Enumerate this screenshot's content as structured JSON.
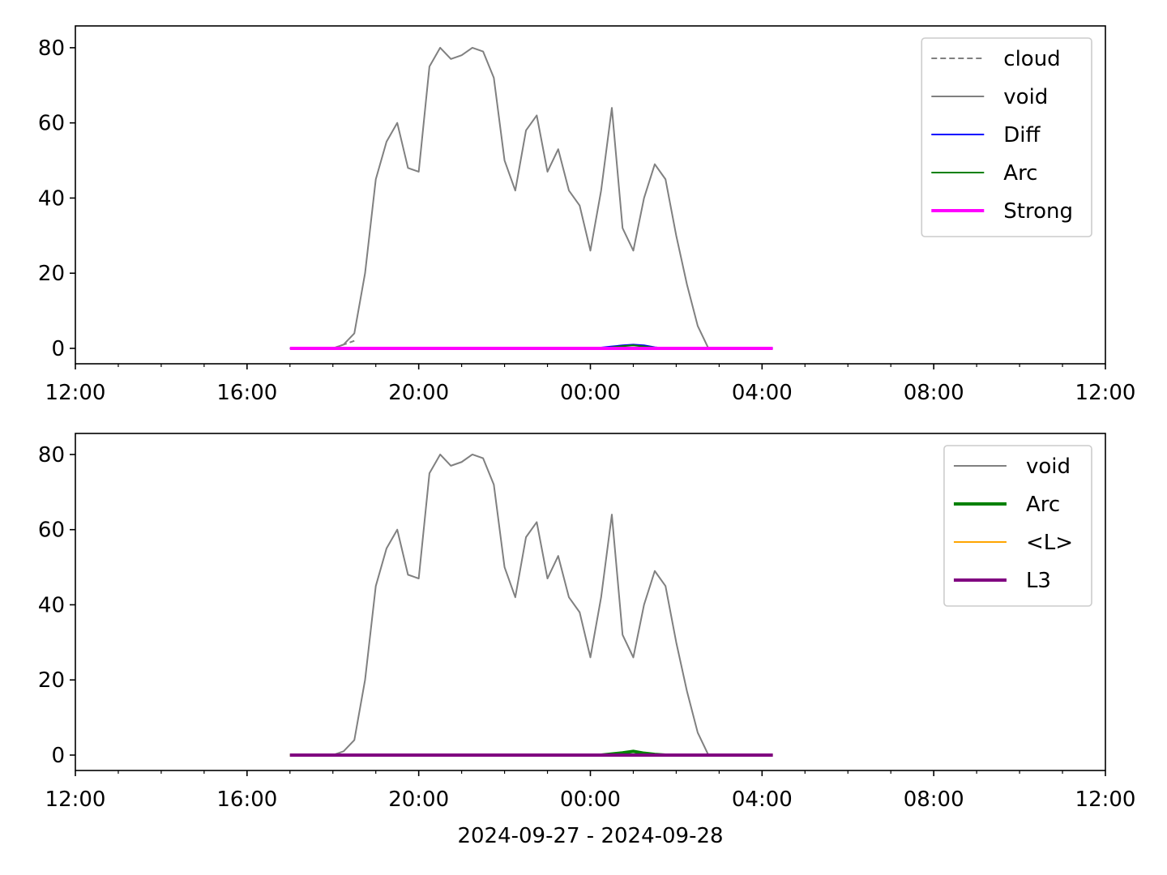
{
  "chart_data": [
    {
      "type": "line",
      "xlim": [
        "2024-09-27T12:00",
        "2024-09-28T12:00"
      ],
      "xticks": [
        {
          "value": "2024-09-27T12:00",
          "label": "12:00"
        },
        {
          "value": "2024-09-27T16:00",
          "label": "16:00"
        },
        {
          "value": "2024-09-27T20:00",
          "label": "20:00"
        },
        {
          "value": "2024-09-28T00:00",
          "label": "00:00"
        },
        {
          "value": "2024-09-28T04:00",
          "label": "04:00"
        },
        {
          "value": "2024-09-28T08:00",
          "label": "08:00"
        },
        {
          "value": "2024-09-28T12:00",
          "label": "12:00"
        }
      ],
      "xminorticks": [
        "2024-09-27T13:00",
        "2024-09-27T14:00",
        "2024-09-27T15:00",
        "2024-09-27T17:00",
        "2024-09-27T18:00",
        "2024-09-27T19:00",
        "2024-09-27T21:00",
        "2024-09-27T22:00",
        "2024-09-27T23:00",
        "2024-09-28T01:00",
        "2024-09-28T02:00",
        "2024-09-28T03:00",
        "2024-09-28T05:00",
        "2024-09-28T06:00",
        "2024-09-28T07:00",
        "2024-09-28T09:00",
        "2024-09-28T10:00",
        "2024-09-28T11:00"
      ],
      "ylim": [
        -4.1,
        85.8
      ],
      "yticks": [
        0,
        20,
        40,
        60,
        80
      ],
      "legend": "upper right",
      "x": [
        "2024-09-27T17:00",
        "2024-09-27T17:15",
        "2024-09-27T17:30",
        "2024-09-27T17:45",
        "2024-09-27T18:00",
        "2024-09-27T18:15",
        "2024-09-27T18:30",
        "2024-09-27T18:45",
        "2024-09-27T19:00",
        "2024-09-27T19:15",
        "2024-09-27T19:30",
        "2024-09-27T19:45",
        "2024-09-27T20:00",
        "2024-09-27T20:15",
        "2024-09-27T20:30",
        "2024-09-27T20:45",
        "2024-09-27T21:00",
        "2024-09-27T21:15",
        "2024-09-27T21:30",
        "2024-09-27T21:45",
        "2024-09-27T22:00",
        "2024-09-27T22:15",
        "2024-09-27T22:30",
        "2024-09-27T22:45",
        "2024-09-27T23:00",
        "2024-09-27T23:15",
        "2024-09-27T23:30",
        "2024-09-27T23:45",
        "2024-09-28T00:00",
        "2024-09-28T00:15",
        "2024-09-28T00:30",
        "2024-09-28T00:45",
        "2024-09-28T01:00",
        "2024-09-28T01:15",
        "2024-09-28T01:30",
        "2024-09-28T01:45",
        "2024-09-28T02:00",
        "2024-09-28T02:15",
        "2024-09-28T02:30",
        "2024-09-28T02:45",
        "2024-09-28T03:00",
        "2024-09-28T03:15",
        "2024-09-28T03:30",
        "2024-09-28T03:45",
        "2024-09-28T04:00",
        "2024-09-28T04:15"
      ],
      "series": [
        {
          "name": "cloud",
          "color": "#808080",
          "linestyle": "dashed",
          "linewidth": 2,
          "values": [
            null,
            null,
            null,
            null,
            0,
            1,
            2,
            null,
            null,
            null,
            null,
            null,
            null,
            null,
            null,
            null,
            null,
            null,
            null,
            null,
            null,
            null,
            null,
            null,
            null,
            null,
            null,
            null,
            null,
            null,
            null,
            null,
            null,
            null,
            null,
            null,
            null,
            null,
            null,
            null,
            null,
            null,
            null,
            null,
            null,
            null
          ]
        },
        {
          "name": "void",
          "color": "#808080",
          "linestyle": "solid",
          "linewidth": 2,
          "values": [
            0,
            0,
            0,
            0,
            0,
            1,
            4,
            20,
            45,
            55,
            60,
            48,
            47,
            75,
            80,
            77,
            78,
            80,
            79,
            72,
            50,
            42,
            58,
            62,
            47,
            53,
            42,
            38,
            26,
            42,
            64,
            32,
            26,
            40,
            49,
            45,
            30,
            17,
            6,
            0,
            null,
            null,
            null,
            null,
            null,
            null
          ]
        },
        {
          "name": "Diff",
          "color": "#0000ff",
          "linestyle": "solid",
          "linewidth": 2,
          "values": [
            0,
            0,
            0,
            0,
            0,
            0,
            0,
            0,
            0,
            0,
            0,
            0,
            0,
            0,
            0,
            0,
            0,
            0,
            0,
            0,
            0,
            0,
            0,
            0,
            0,
            0,
            0,
            0,
            0,
            0.2,
            0.5,
            0.8,
            1,
            0.8,
            0.3,
            0,
            0,
            0,
            0,
            0,
            0,
            0,
            0,
            0,
            0,
            0
          ]
        },
        {
          "name": "Arc",
          "color": "#008000",
          "linestyle": "solid",
          "linewidth": 2,
          "values": [
            0,
            0,
            0,
            0,
            0,
            0,
            0,
            0,
            0,
            0,
            0,
            0,
            0,
            0,
            0,
            0,
            0,
            0,
            0,
            0,
            0,
            0,
            0,
            0,
            0,
            0,
            0,
            0,
            0,
            0,
            0.3,
            0.6,
            0.8,
            0.5,
            0.2,
            0,
            0,
            0,
            0,
            0,
            0,
            0,
            0,
            0,
            0,
            0
          ]
        },
        {
          "name": "Strong",
          "color": "#ff00ff",
          "linestyle": "solid",
          "linewidth": 4,
          "values": [
            0,
            0,
            0,
            0,
            0,
            0,
            0,
            0,
            0,
            0,
            0,
            0,
            0,
            0,
            0,
            0,
            0,
            0,
            0,
            0,
            0,
            0,
            0,
            0,
            0,
            0,
            0,
            0,
            0,
            0,
            0,
            0,
            0,
            0,
            0,
            0,
            0,
            0,
            0,
            0,
            0,
            0,
            0,
            0,
            0,
            0
          ]
        }
      ]
    },
    {
      "type": "line",
      "xlim": [
        "2024-09-27T12:00",
        "2024-09-28T12:00"
      ],
      "xticks": [
        {
          "value": "2024-09-27T12:00",
          "label": "12:00"
        },
        {
          "value": "2024-09-27T16:00",
          "label": "16:00"
        },
        {
          "value": "2024-09-27T20:00",
          "label": "20:00"
        },
        {
          "value": "2024-09-28T00:00",
          "label": "00:00"
        },
        {
          "value": "2024-09-28T04:00",
          "label": "04:00"
        },
        {
          "value": "2024-09-28T08:00",
          "label": "08:00"
        },
        {
          "value": "2024-09-28T12:00",
          "label": "12:00"
        }
      ],
      "xminorticks": [
        "2024-09-27T13:00",
        "2024-09-27T14:00",
        "2024-09-27T15:00",
        "2024-09-27T17:00",
        "2024-09-27T18:00",
        "2024-09-27T19:00",
        "2024-09-27T21:00",
        "2024-09-27T22:00",
        "2024-09-27T23:00",
        "2024-09-28T01:00",
        "2024-09-28T02:00",
        "2024-09-28T03:00",
        "2024-09-28T05:00",
        "2024-09-28T06:00",
        "2024-09-28T07:00",
        "2024-09-28T09:00",
        "2024-09-28T10:00",
        "2024-09-28T11:00"
      ],
      "ylim": [
        -4.1,
        85.6
      ],
      "yticks": [
        0,
        20,
        40,
        60,
        80
      ],
      "legend": "upper right",
      "xlabel": "2024-09-27 - 2024-09-28",
      "x": [
        "2024-09-27T17:00",
        "2024-09-27T17:15",
        "2024-09-27T17:30",
        "2024-09-27T17:45",
        "2024-09-27T18:00",
        "2024-09-27T18:15",
        "2024-09-27T18:30",
        "2024-09-27T18:45",
        "2024-09-27T19:00",
        "2024-09-27T19:15",
        "2024-09-27T19:30",
        "2024-09-27T19:45",
        "2024-09-27T20:00",
        "2024-09-27T20:15",
        "2024-09-27T20:30",
        "2024-09-27T20:45",
        "2024-09-27T21:00",
        "2024-09-27T21:15",
        "2024-09-27T21:30",
        "2024-09-27T21:45",
        "2024-09-27T22:00",
        "2024-09-27T22:15",
        "2024-09-27T22:30",
        "2024-09-27T22:45",
        "2024-09-27T23:00",
        "2024-09-27T23:15",
        "2024-09-27T23:30",
        "2024-09-27T23:45",
        "2024-09-28T00:00",
        "2024-09-28T00:15",
        "2024-09-28T00:30",
        "2024-09-28T00:45",
        "2024-09-28T01:00",
        "2024-09-28T01:15",
        "2024-09-28T01:30",
        "2024-09-28T01:45",
        "2024-09-28T02:00",
        "2024-09-28T02:15",
        "2024-09-28T02:30",
        "2024-09-28T02:45",
        "2024-09-28T03:00",
        "2024-09-28T03:15",
        "2024-09-28T03:30",
        "2024-09-28T03:45",
        "2024-09-28T04:00",
        "2024-09-28T04:15"
      ],
      "series": [
        {
          "name": "void",
          "color": "#808080",
          "linestyle": "solid",
          "linewidth": 2,
          "values": [
            0,
            0,
            0,
            0,
            0,
            1,
            4,
            20,
            45,
            55,
            60,
            48,
            47,
            75,
            80,
            77,
            78,
            80,
            79,
            72,
            50,
            42,
            58,
            62,
            47,
            53,
            42,
            38,
            26,
            42,
            64,
            32,
            26,
            40,
            49,
            45,
            30,
            17,
            6,
            0,
            null,
            null,
            null,
            null,
            null,
            null
          ]
        },
        {
          "name": "Arc",
          "color": "#008000",
          "linestyle": "solid",
          "linewidth": 4,
          "values": [
            0,
            0,
            0,
            0,
            0,
            0,
            0,
            0,
            0,
            0,
            0,
            0,
            0,
            0,
            0,
            0,
            0,
            0,
            0,
            0,
            0,
            0,
            0,
            0,
            0,
            0,
            0,
            0,
            0,
            0,
            0.3,
            0.6,
            1,
            0.5,
            0.2,
            0,
            0,
            0,
            0,
            0,
            0,
            0,
            0,
            0,
            0,
            0
          ]
        },
        {
          "name": "<L>",
          "color": "#ffa500",
          "linestyle": "solid",
          "linewidth": 2,
          "values": [
            0,
            0,
            0,
            0,
            0,
            0,
            0,
            0,
            0,
            0,
            0,
            0,
            0,
            0,
            0,
            0,
            0,
            0,
            0,
            0,
            0,
            0,
            0,
            0,
            0,
            0,
            0,
            0,
            0,
            0,
            0,
            0,
            0,
            0,
            0,
            0,
            0,
            0,
            0,
            0,
            0,
            0,
            0,
            0,
            0,
            0
          ]
        },
        {
          "name": "L3",
          "color": "#800080",
          "linestyle": "solid",
          "linewidth": 4,
          "values": [
            0,
            0,
            0,
            0,
            0,
            0,
            0,
            0,
            0,
            0,
            0,
            0,
            0,
            0,
            0,
            0,
            0,
            0,
            0,
            0,
            0,
            0,
            0,
            0,
            0,
            0,
            0,
            0,
            0,
            0,
            0,
            0,
            0,
            0,
            0,
            0,
            0,
            0,
            0,
            0,
            0,
            0,
            0,
            0,
            0,
            0
          ]
        }
      ]
    }
  ]
}
